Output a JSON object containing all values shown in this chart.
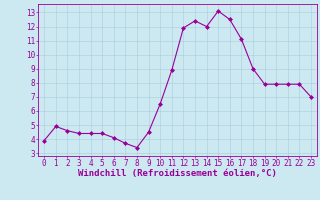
{
  "x": [
    0,
    1,
    2,
    3,
    4,
    5,
    6,
    7,
    8,
    9,
    10,
    11,
    12,
    13,
    14,
    15,
    16,
    17,
    18,
    19,
    20,
    21,
    22,
    23
  ],
  "y": [
    3.9,
    4.9,
    4.6,
    4.4,
    4.4,
    4.4,
    4.1,
    3.7,
    3.4,
    4.5,
    6.5,
    8.9,
    11.9,
    12.4,
    12.0,
    13.1,
    12.5,
    11.1,
    9.0,
    7.9,
    7.9,
    7.9,
    7.9,
    7.0
  ],
  "line_color": "#990099",
  "marker": "D",
  "marker_size": 2.0,
  "xlabel": "Windchill (Refroidissement éolien,°C)",
  "xlabel_fontsize": 6.5,
  "ylabel_ticks": [
    3,
    4,
    5,
    6,
    7,
    8,
    9,
    10,
    11,
    12,
    13
  ],
  "ylim": [
    2.8,
    13.6
  ],
  "xlim": [
    -0.5,
    23.5
  ],
  "bg_color": "#cce8f0",
  "grid_color": "#aaccdd",
  "tick_fontsize": 5.5,
  "tick_color": "#990099",
  "label_color": "#990099",
  "spine_color": "#990099"
}
